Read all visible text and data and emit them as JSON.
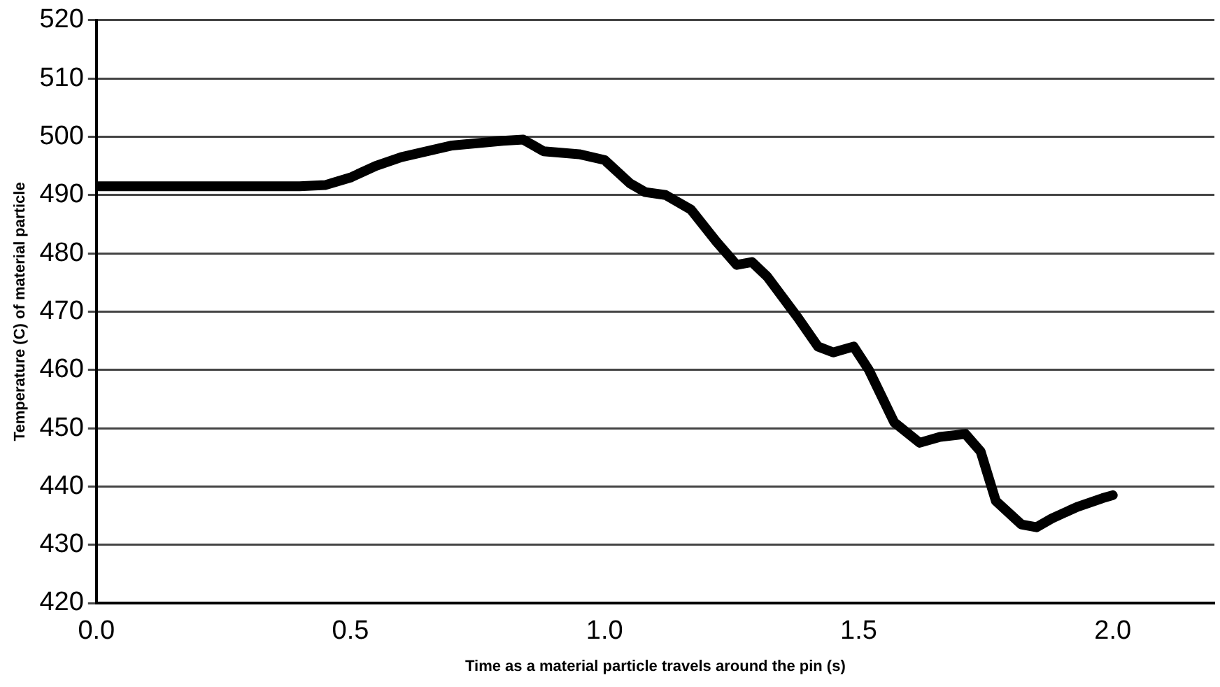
{
  "chart_data": {
    "type": "line",
    "xlabel": "Time as a material particle travels around the pin (s)",
    "ylabel": "Temperature (C) of material particle",
    "x": [
      0,
      0.1,
      0.2,
      0.3,
      0.4,
      0.45,
      0.5,
      0.55,
      0.6,
      0.7,
      0.8,
      0.84,
      0.88,
      0.95,
      1.0,
      1.05,
      1.08,
      1.12,
      1.17,
      1.22,
      1.26,
      1.29,
      1.32,
      1.38,
      1.42,
      1.45,
      1.49,
      1.52,
      1.57,
      1.62,
      1.66,
      1.71,
      1.74,
      1.77,
      1.82,
      1.85,
      1.88,
      1.93,
      1.98,
      2.0
    ],
    "series": [
      {
        "color": "#000000",
        "values": [
          491.5,
          491.5,
          491.5,
          491.5,
          491.5,
          491.7,
          493,
          495,
          496.5,
          498.5,
          499.3,
          499.5,
          497.5,
          497,
          496,
          492,
          490.5,
          490,
          487.5,
          482,
          478,
          478.5,
          476,
          469,
          464,
          463,
          464,
          460,
          451,
          447.5,
          448.5,
          449,
          446,
          437.5,
          433.5,
          433,
          434.5,
          436.5,
          438,
          438.5
        ]
      }
    ],
    "xlim": [
      0,
      2.2
    ],
    "xticks": [
      {
        "value": 0,
        "label": "0.0"
      },
      0.5,
      {
        "value": 1,
        "label": "1.0"
      },
      1.5,
      {
        "value": 2,
        "label": "2.0"
      }
    ],
    "ylim": [
      420,
      520
    ],
    "yticks": [
      420,
      430,
      440,
      450,
      460,
      470,
      480,
      490,
      500,
      510,
      520
    ],
    "grid": "y",
    "legend": false,
    "line_style": "solid"
  }
}
